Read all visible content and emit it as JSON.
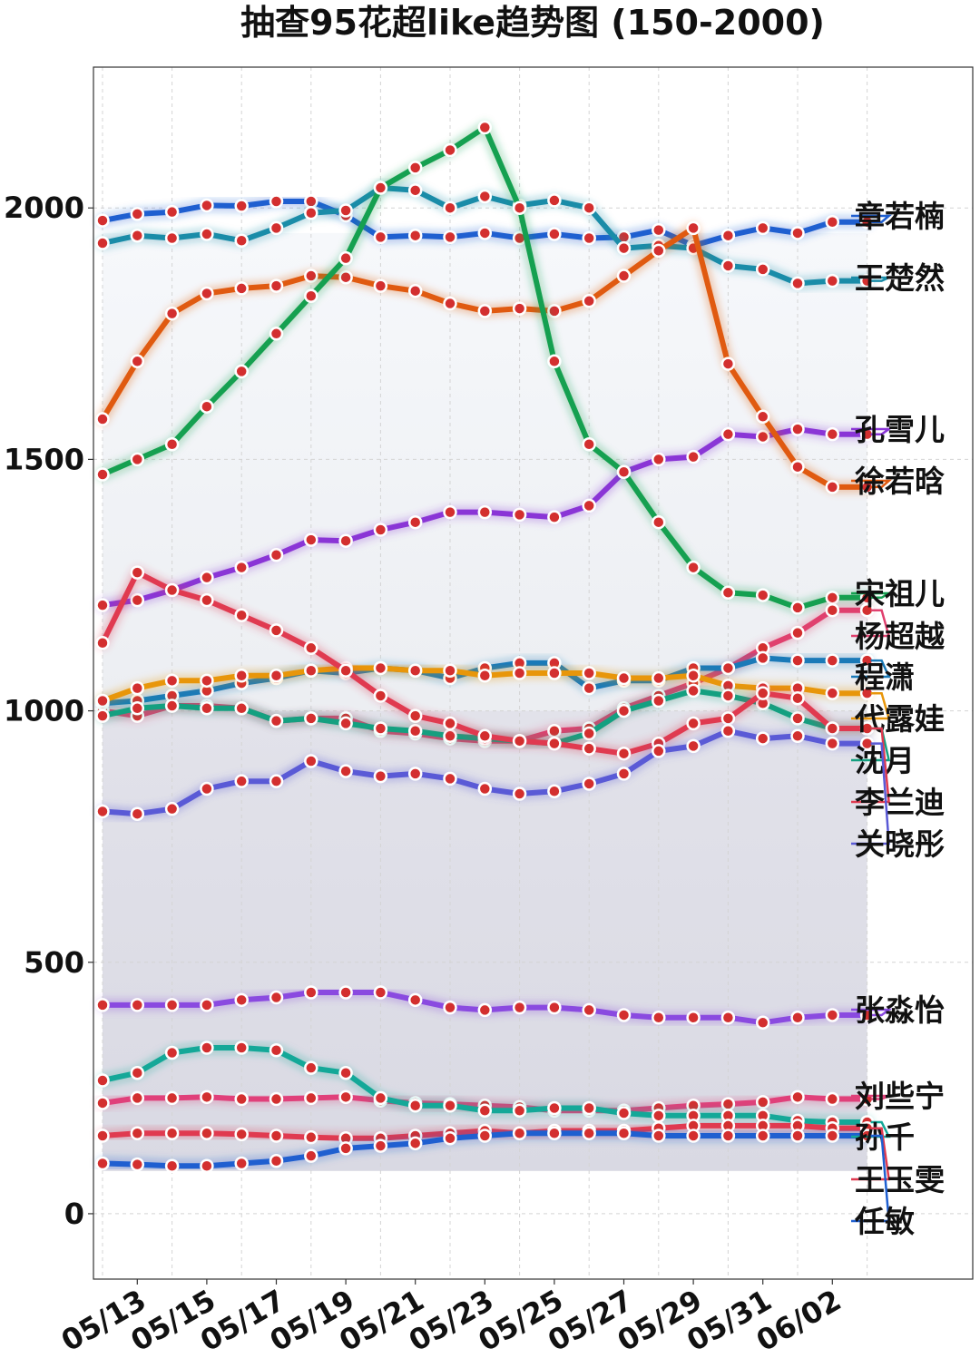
{
  "chart_data": {
    "type": "line",
    "title": "抽查95花超like趋势图 (150-2000)",
    "xlabel": "",
    "ylabel": "",
    "ylim": [
      -130,
      2280
    ],
    "y_ticks": [
      0,
      500,
      1000,
      1500,
      2000
    ],
    "x": [
      "05/12",
      "05/13",
      "05/14",
      "05/15",
      "05/16",
      "05/17",
      "05/18",
      "05/19",
      "05/20",
      "05/21",
      "05/22",
      "05/23",
      "05/24",
      "05/25",
      "05/26",
      "05/27",
      "05/28",
      "05/29",
      "05/30",
      "05/31",
      "06/01",
      "06/02",
      "06/03"
    ],
    "x_tick_labels": [
      "05/13",
      "05/15",
      "05/17",
      "05/19",
      "05/21",
      "05/23",
      "05/25",
      "05/27",
      "05/29",
      "05/31",
      "06/02"
    ],
    "grid": true,
    "series": [
      {
        "name": "章若楠",
        "color": "#1f5fd0",
        "values": [
          1975,
          1988,
          1992,
          2005,
          2004,
          2013,
          2013,
          1985,
          1942,
          1945,
          1942,
          1950,
          1940,
          1948,
          1940,
          1942,
          1956,
          1925,
          1945,
          1960,
          1950,
          1972,
          1972
        ]
      },
      {
        "name": "王楚然",
        "color": "#1a8ca8",
        "values": [
          1930,
          1945,
          1940,
          1948,
          1935,
          1960,
          1990,
          1995,
          2040,
          2035,
          2000,
          2023,
          2005,
          2015,
          2000,
          1920,
          1925,
          1920,
          1885,
          1878,
          1850,
          1855,
          1855
        ]
      },
      {
        "name": "孔雪儿",
        "color": "#8a35d6",
        "values": [
          1210,
          1220,
          1240,
          1265,
          1285,
          1310,
          1340,
          1338,
          1360,
          1375,
          1395,
          1395,
          1390,
          1385,
          1408,
          1475,
          1500,
          1505,
          1550,
          1545,
          1560,
          1550,
          1550
        ]
      },
      {
        "name": "徐若晗",
        "color": "#e05a10",
        "values": [
          1580,
          1695,
          1790,
          1830,
          1840,
          1845,
          1865,
          1862,
          1845,
          1835,
          1810,
          1795,
          1800,
          1795,
          1815,
          1865,
          1915,
          1960,
          1690,
          1585,
          1485,
          1445,
          1445
        ]
      },
      {
        "name": "宋祖儿",
        "color": "#15a050",
        "values": [
          1470,
          1500,
          1530,
          1605,
          1675,
          1750,
          1825,
          1900,
          2040,
          2080,
          2115,
          2160,
          2000,
          1695,
          1530,
          1475,
          1375,
          1285,
          1235,
          1230,
          1205,
          1225,
          1225
        ]
      },
      {
        "name": "杨超越",
        "color": "#e0406e",
        "values": [
          1000,
          990,
          1010,
          1010,
          1005,
          980,
          985,
          985,
          960,
          955,
          945,
          940,
          940,
          960,
          965,
          1005,
          1030,
          1055,
          1085,
          1125,
          1155,
          1200,
          1200
        ]
      },
      {
        "name": "程潇",
        "color": "#1a7ab8",
        "values": [
          1015,
          1020,
          1030,
          1040,
          1055,
          1065,
          1080,
          1075,
          1085,
          1080,
          1065,
          1085,
          1095,
          1095,
          1045,
          1060,
          1060,
          1085,
          1085,
          1105,
          1100,
          1100,
          1100
        ]
      },
      {
        "name": "代露娃",
        "color": "#e8960a",
        "values": [
          1020,
          1045,
          1060,
          1060,
          1070,
          1070,
          1080,
          1085,
          1085,
          1080,
          1080,
          1070,
          1075,
          1075,
          1075,
          1065,
          1065,
          1070,
          1050,
          1045,
          1045,
          1035,
          1035
        ]
      },
      {
        "name": "沈月",
        "color": "#14a080",
        "values": [
          990,
          1005,
          1010,
          1005,
          1005,
          980,
          985,
          975,
          965,
          960,
          950,
          945,
          940,
          935,
          955,
          1000,
          1020,
          1040,
          1030,
          1015,
          985,
          965,
          965
        ]
      },
      {
        "name": "李兰迪",
        "color": "#e03a50",
        "values": [
          1135,
          1275,
          1240,
          1220,
          1190,
          1160,
          1125,
          1080,
          1030,
          990,
          975,
          950,
          940,
          935,
          925,
          915,
          935,
          975,
          985,
          1035,
          1025,
          965,
          965
        ]
      },
      {
        "name": "关晓彤",
        "color": "#5a5ad6",
        "values": [
          800,
          795,
          805,
          845,
          860,
          860,
          900,
          880,
          870,
          875,
          865,
          845,
          835,
          840,
          855,
          875,
          920,
          930,
          960,
          945,
          950,
          935,
          935
        ]
      },
      {
        "name": "张淼怡",
        "color": "#8a4ae0",
        "values": [
          415,
          415,
          415,
          415,
          425,
          430,
          440,
          440,
          440,
          425,
          410,
          405,
          410,
          410,
          405,
          395,
          390,
          390,
          390,
          380,
          390,
          395,
          395
        ]
      },
      {
        "name": "刘些宁",
        "color": "#e0407a",
        "values": [
          220,
          230,
          230,
          232,
          228,
          228,
          230,
          232,
          225,
          220,
          218,
          215,
          212,
          205,
          205,
          205,
          210,
          215,
          218,
          222,
          232,
          228,
          228
        ]
      },
      {
        "name": "孙千",
        "color": "#14a898",
        "values": [
          265,
          280,
          320,
          330,
          330,
          325,
          290,
          280,
          230,
          215,
          215,
          205,
          205,
          210,
          210,
          200,
          195,
          195,
          195,
          195,
          185,
          182,
          182
        ]
      },
      {
        "name": "王玉雯",
        "color": "#e03a50",
        "values": [
          155,
          160,
          160,
          160,
          158,
          155,
          152,
          150,
          150,
          155,
          160,
          165,
          160,
          165,
          165,
          165,
          170,
          175,
          175,
          175,
          175,
          170,
          170
        ]
      },
      {
        "name": "任敏",
        "color": "#1f5fd0",
        "values": [
          100,
          98,
          95,
          95,
          100,
          105,
          115,
          130,
          135,
          140,
          150,
          155,
          160,
          160,
          160,
          160,
          155,
          155,
          155,
          155,
          155,
          155,
          155
        ]
      }
    ],
    "end_labels": [
      "章若楠",
      "王楚然",
      "孔雪儿",
      "徐若晗",
      "宋祖儿",
      "杨超越",
      "程潇",
      "代露娃",
      "沈月",
      "李兰迪",
      "关晓彤",
      "张淼怡",
      "刘些宁",
      "孙千",
      "王玉雯",
      "任敏"
    ]
  }
}
